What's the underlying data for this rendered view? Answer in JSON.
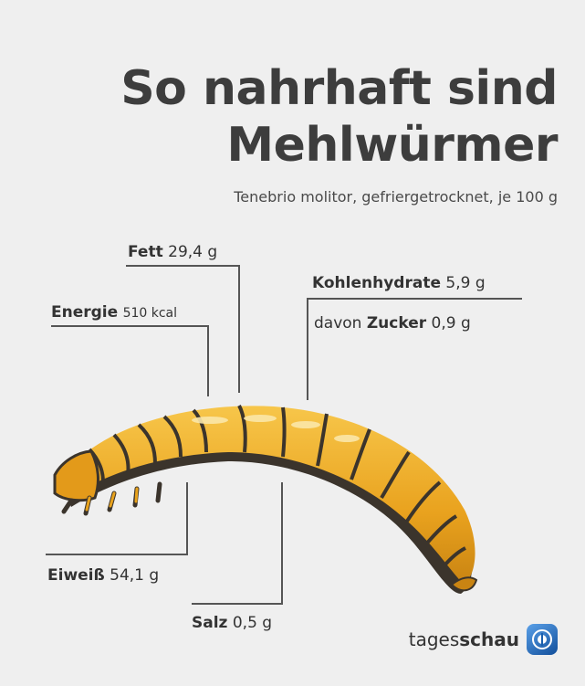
{
  "title": {
    "line1": "So nahrhaft sind",
    "line2": "Mehlwürmer"
  },
  "subtitle": "Tenebrio molitor, gefriergetrocknet, je 100 g",
  "nutrients": {
    "fett": {
      "name": "Fett",
      "value": "29,4 g"
    },
    "energie": {
      "name": "Energie",
      "value": "510 kcal"
    },
    "kohlenhydrate": {
      "name": "Kohlenhydrate",
      "value": "5,9 g"
    },
    "zucker": {
      "prefix": "davon",
      "name": "Zucker",
      "value": "0,9 g"
    },
    "eiweiss": {
      "name": "Eiweiß",
      "value": "54,1 g"
    },
    "salz": {
      "name": "Salz",
      "value": "0,5 g"
    }
  },
  "brand": {
    "light": "tages",
    "bold": "schau"
  },
  "colors": {
    "worm_fill": "#e8a21c",
    "worm_dark": "#3b342c",
    "lines": "#555555",
    "background": "#efefef"
  },
  "icons": {
    "brand_logo": "tagesschau-logo-icon"
  }
}
